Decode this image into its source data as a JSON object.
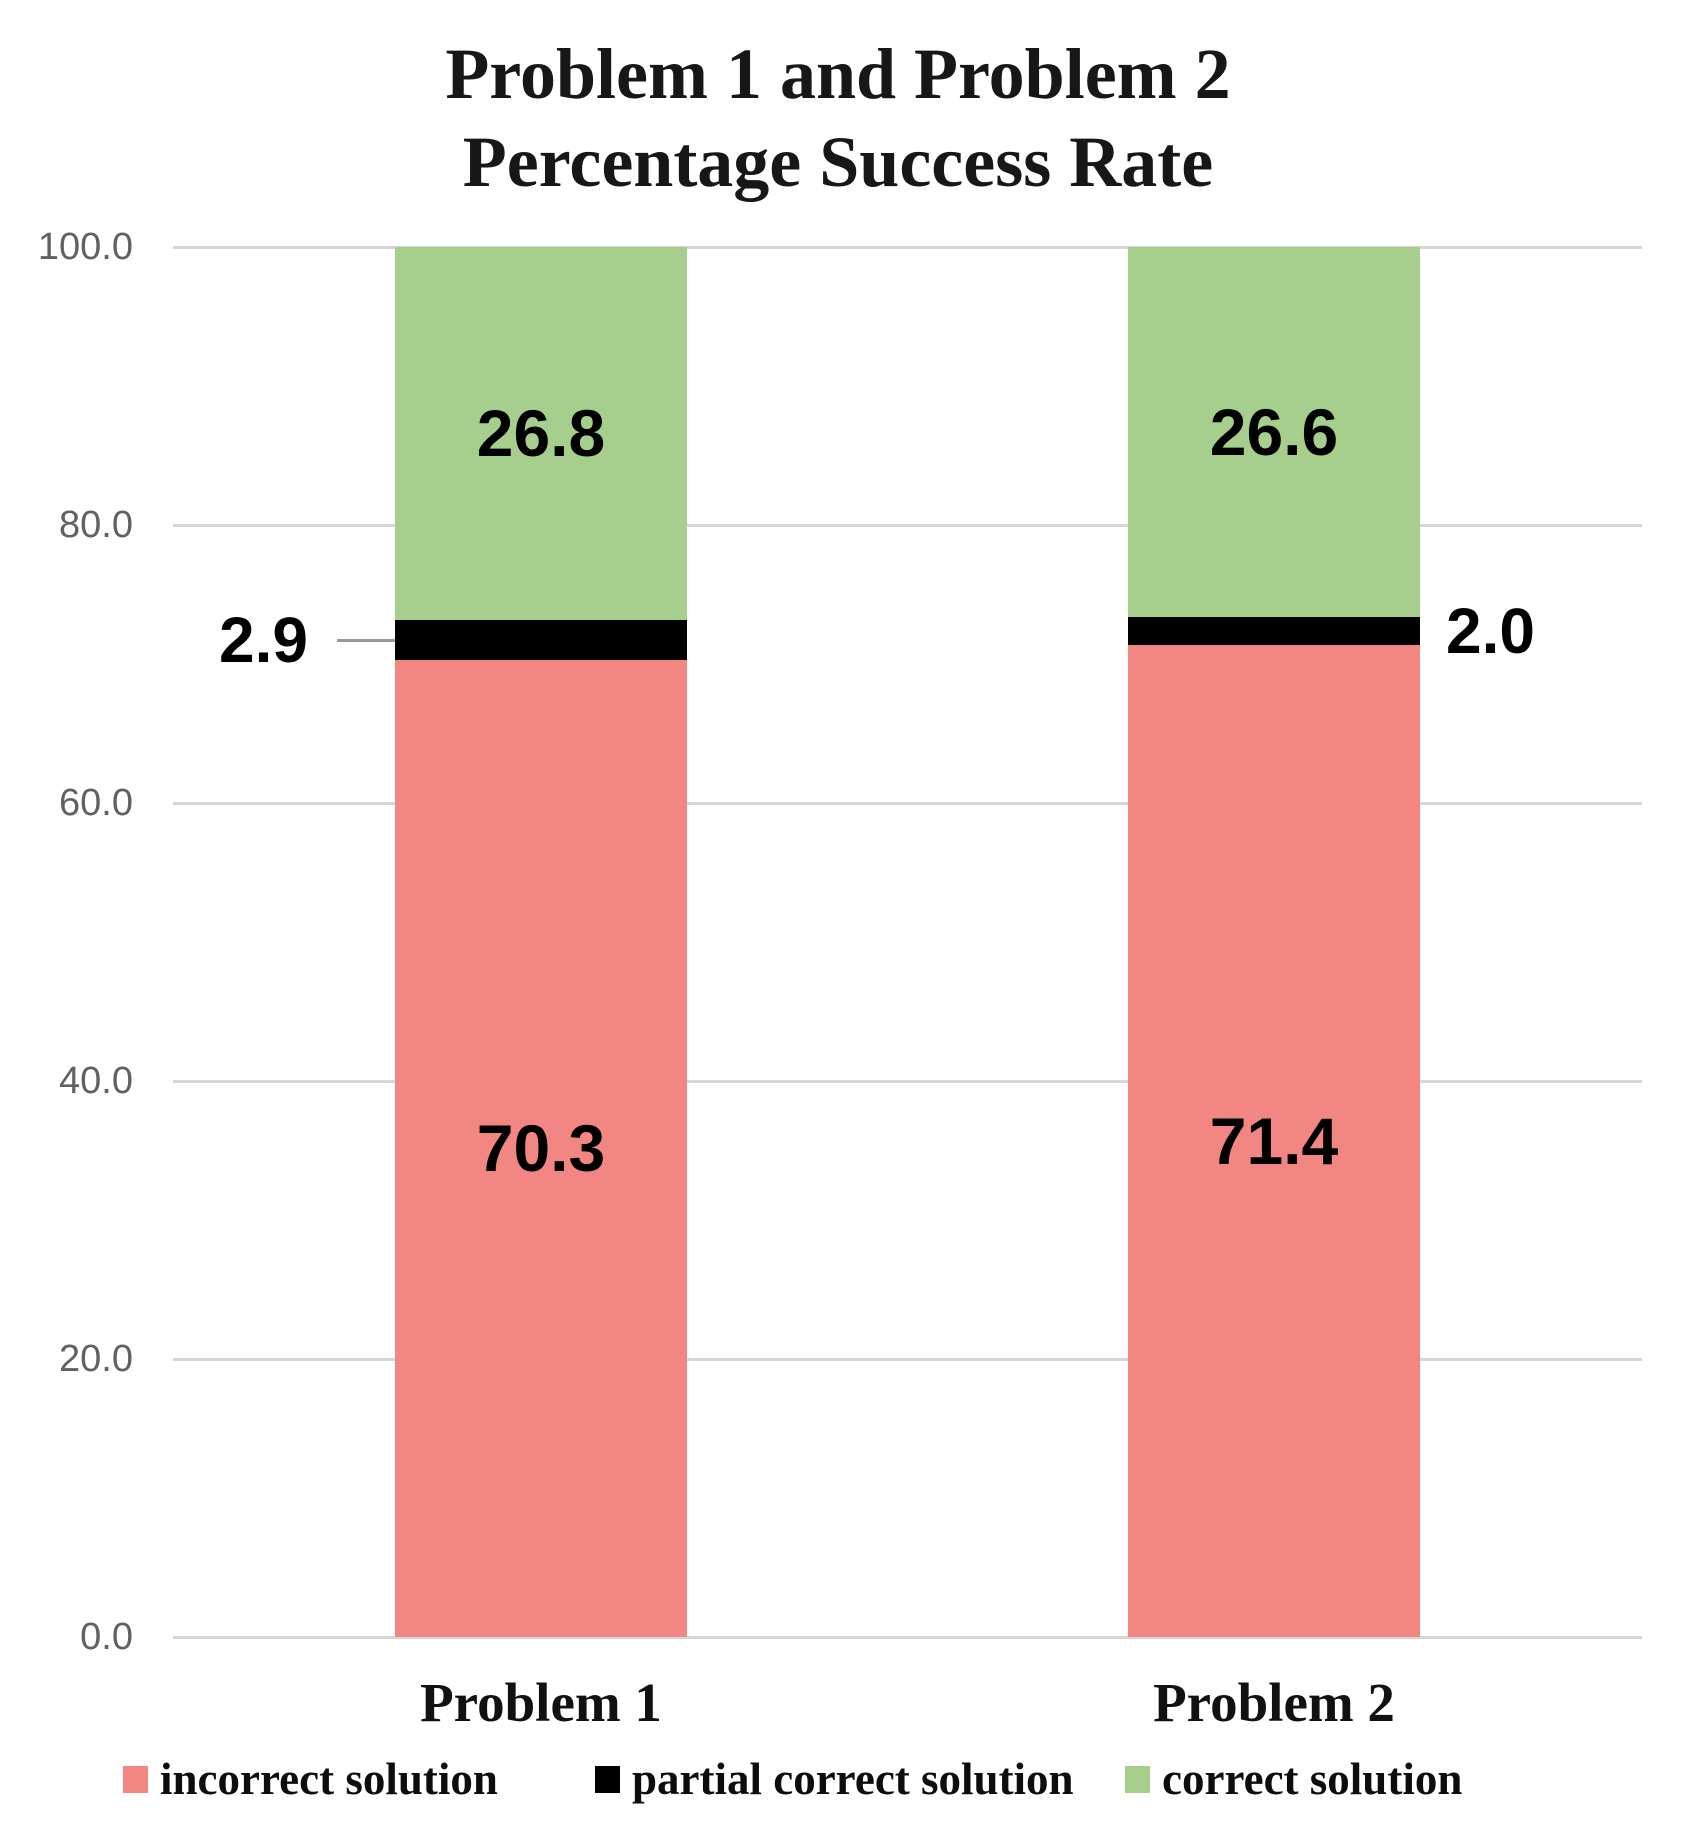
{
  "title": {
    "line1": "Problem 1 and Problem 2",
    "line2": "Percentage Success Rate"
  },
  "chart_data": {
    "type": "bar",
    "stacked": true,
    "title": "Problem 1 and Problem 2 Percentage Success Rate",
    "categories": [
      "Problem 1",
      "Problem 2"
    ],
    "series": [
      {
        "name": "incorrect solution",
        "color": "#F28683",
        "values": [
          70.3,
          71.4
        ]
      },
      {
        "name": "partial correct solution",
        "color": "#000000",
        "values": [
          2.9,
          2.0
        ]
      },
      {
        "name": "correct solution",
        "color": "#A6CF8D",
        "values": [
          26.8,
          26.6
        ]
      }
    ],
    "data_labels": [
      {
        "category": "Problem 1",
        "incorrect solution": "70.3",
        "partial correct solution": "2.9",
        "correct solution": "26.8"
      },
      {
        "category": "Problem 2",
        "incorrect solution": "71.4",
        "partial correct solution": "2.0",
        "correct solution": "26.6"
      }
    ],
    "xlabel": "",
    "ylabel": "",
    "ylim": [
      0,
      100
    ],
    "ytick_labels": [
      "0.0",
      "20.0",
      "40.0",
      "60.0",
      "80.0",
      "100.0"
    ],
    "grid": true,
    "legend_position": "bottom"
  },
  "styles": {
    "grid_color": "#d6d6d6",
    "tick_label_color": "#616161",
    "leader_line_color": "#9a9a9a",
    "background": "#ffffff"
  }
}
